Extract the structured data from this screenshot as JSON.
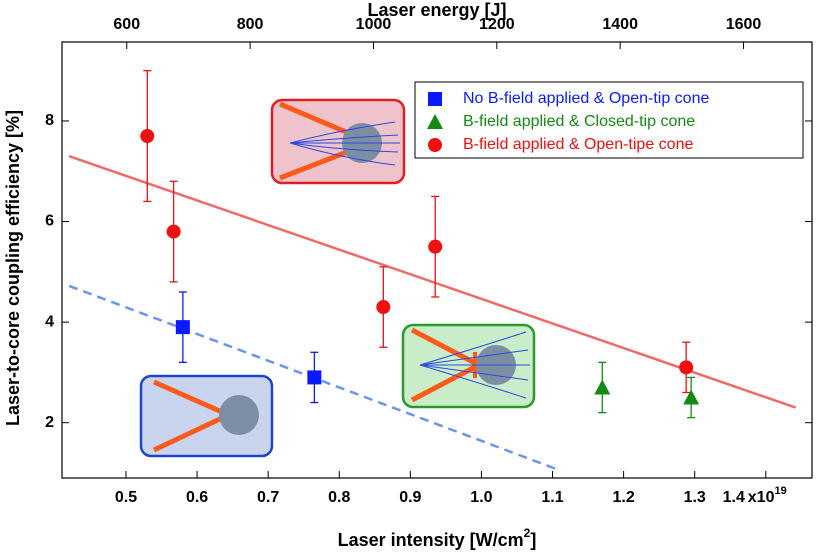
{
  "chart_data": {
    "type": "scatter",
    "x_label": [
      "Laser intensity [W/cm",
      "2",
      "]"
    ],
    "x_exponent": [
      "x10",
      "19"
    ],
    "x2_label": "Laser energy [J]",
    "y_label": "Laser-to-core coupling efficiency [%]",
    "xlim": [
      0.41,
      1.465
    ],
    "xticks": [
      0.5,
      0.6,
      0.7,
      0.8,
      0.9,
      {
        "value": 1.0,
        "label": "1.0"
      },
      1.1,
      1.2,
      1.3,
      1.4
    ],
    "x2lim": [
      495,
      1711
    ],
    "x2ticks": [
      600,
      800,
      1000,
      1200,
      1400,
      1600
    ],
    "ylim": [
      0.9,
      9.57
    ],
    "yticks": [
      2,
      4,
      6,
      8
    ],
    "legend": "upper right",
    "series": [
      {
        "name": "No B-field applied & Open-tip cone",
        "color": "#0a1aff",
        "marker": "square",
        "x": [
          0.58,
          0.765
        ],
        "values": [
          3.9,
          2.9
        ],
        "errors": [
          0.7,
          0.5
        ]
      },
      {
        "name": "B-field applied & Closed-tip cone",
        "color": "#138a13",
        "marker": "triangle",
        "x": [
          1.17,
          1.295
        ],
        "values": [
          2.7,
          2.5
        ],
        "errors": [
          0.5,
          0.4
        ]
      },
      {
        "name": "B-field applied & Open-tipe cone",
        "color": "#f01010",
        "marker": "circle",
        "x": [
          0.53,
          0.567,
          0.862,
          0.935,
          1.288
        ],
        "values": [
          7.7,
          5.8,
          4.3,
          5.5,
          3.1
        ],
        "errors": [
          1.3,
          1.0,
          0.8,
          1.0,
          0.5
        ]
      }
    ],
    "fits": [
      {
        "color": "#ee6a6a",
        "dashed": false,
        "x": [
          0.42,
          1.442
        ],
        "values": [
          7.3,
          2.3
        ]
      },
      {
        "color": "#6a95ee",
        "dashed": true,
        "x": [
          0.42,
          1.107
        ],
        "values": [
          4.72,
          1.07
        ]
      }
    ]
  }
}
